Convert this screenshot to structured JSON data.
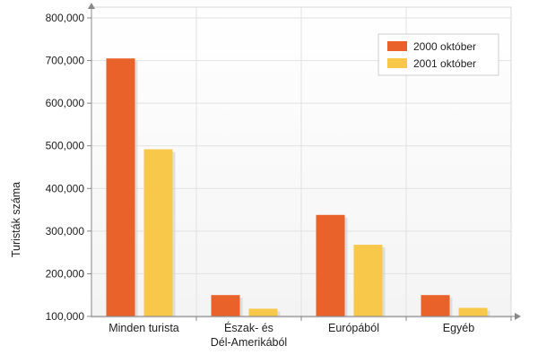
{
  "chart_data": {
    "type": "bar",
    "ylabel": "Turisták száma",
    "xlabel": "",
    "ylim": [
      100000,
      800000
    ],
    "yticks": [
      100000,
      200000,
      300000,
      400000,
      500000,
      600000,
      700000,
      800000
    ],
    "ytick_labels": [
      "100,000",
      "200,000",
      "300,000",
      "400,000",
      "500,000",
      "600,000",
      "700,000",
      "800,000"
    ],
    "categories": [
      [
        "Minden turista"
      ],
      [
        "Észak- és",
        "Dél-Amerikából"
      ],
      [
        "Európából"
      ],
      [
        "Egyéb"
      ]
    ],
    "series": [
      {
        "name": "2000 október",
        "color": "#e8622a",
        "values": [
          705000,
          150000,
          338000,
          150000
        ]
      },
      {
        "name": "2001 október",
        "color": "#f7c84a",
        "values": [
          492000,
          118000,
          268000,
          120000
        ]
      }
    ],
    "grid": true,
    "legend_position": "top-right"
  }
}
